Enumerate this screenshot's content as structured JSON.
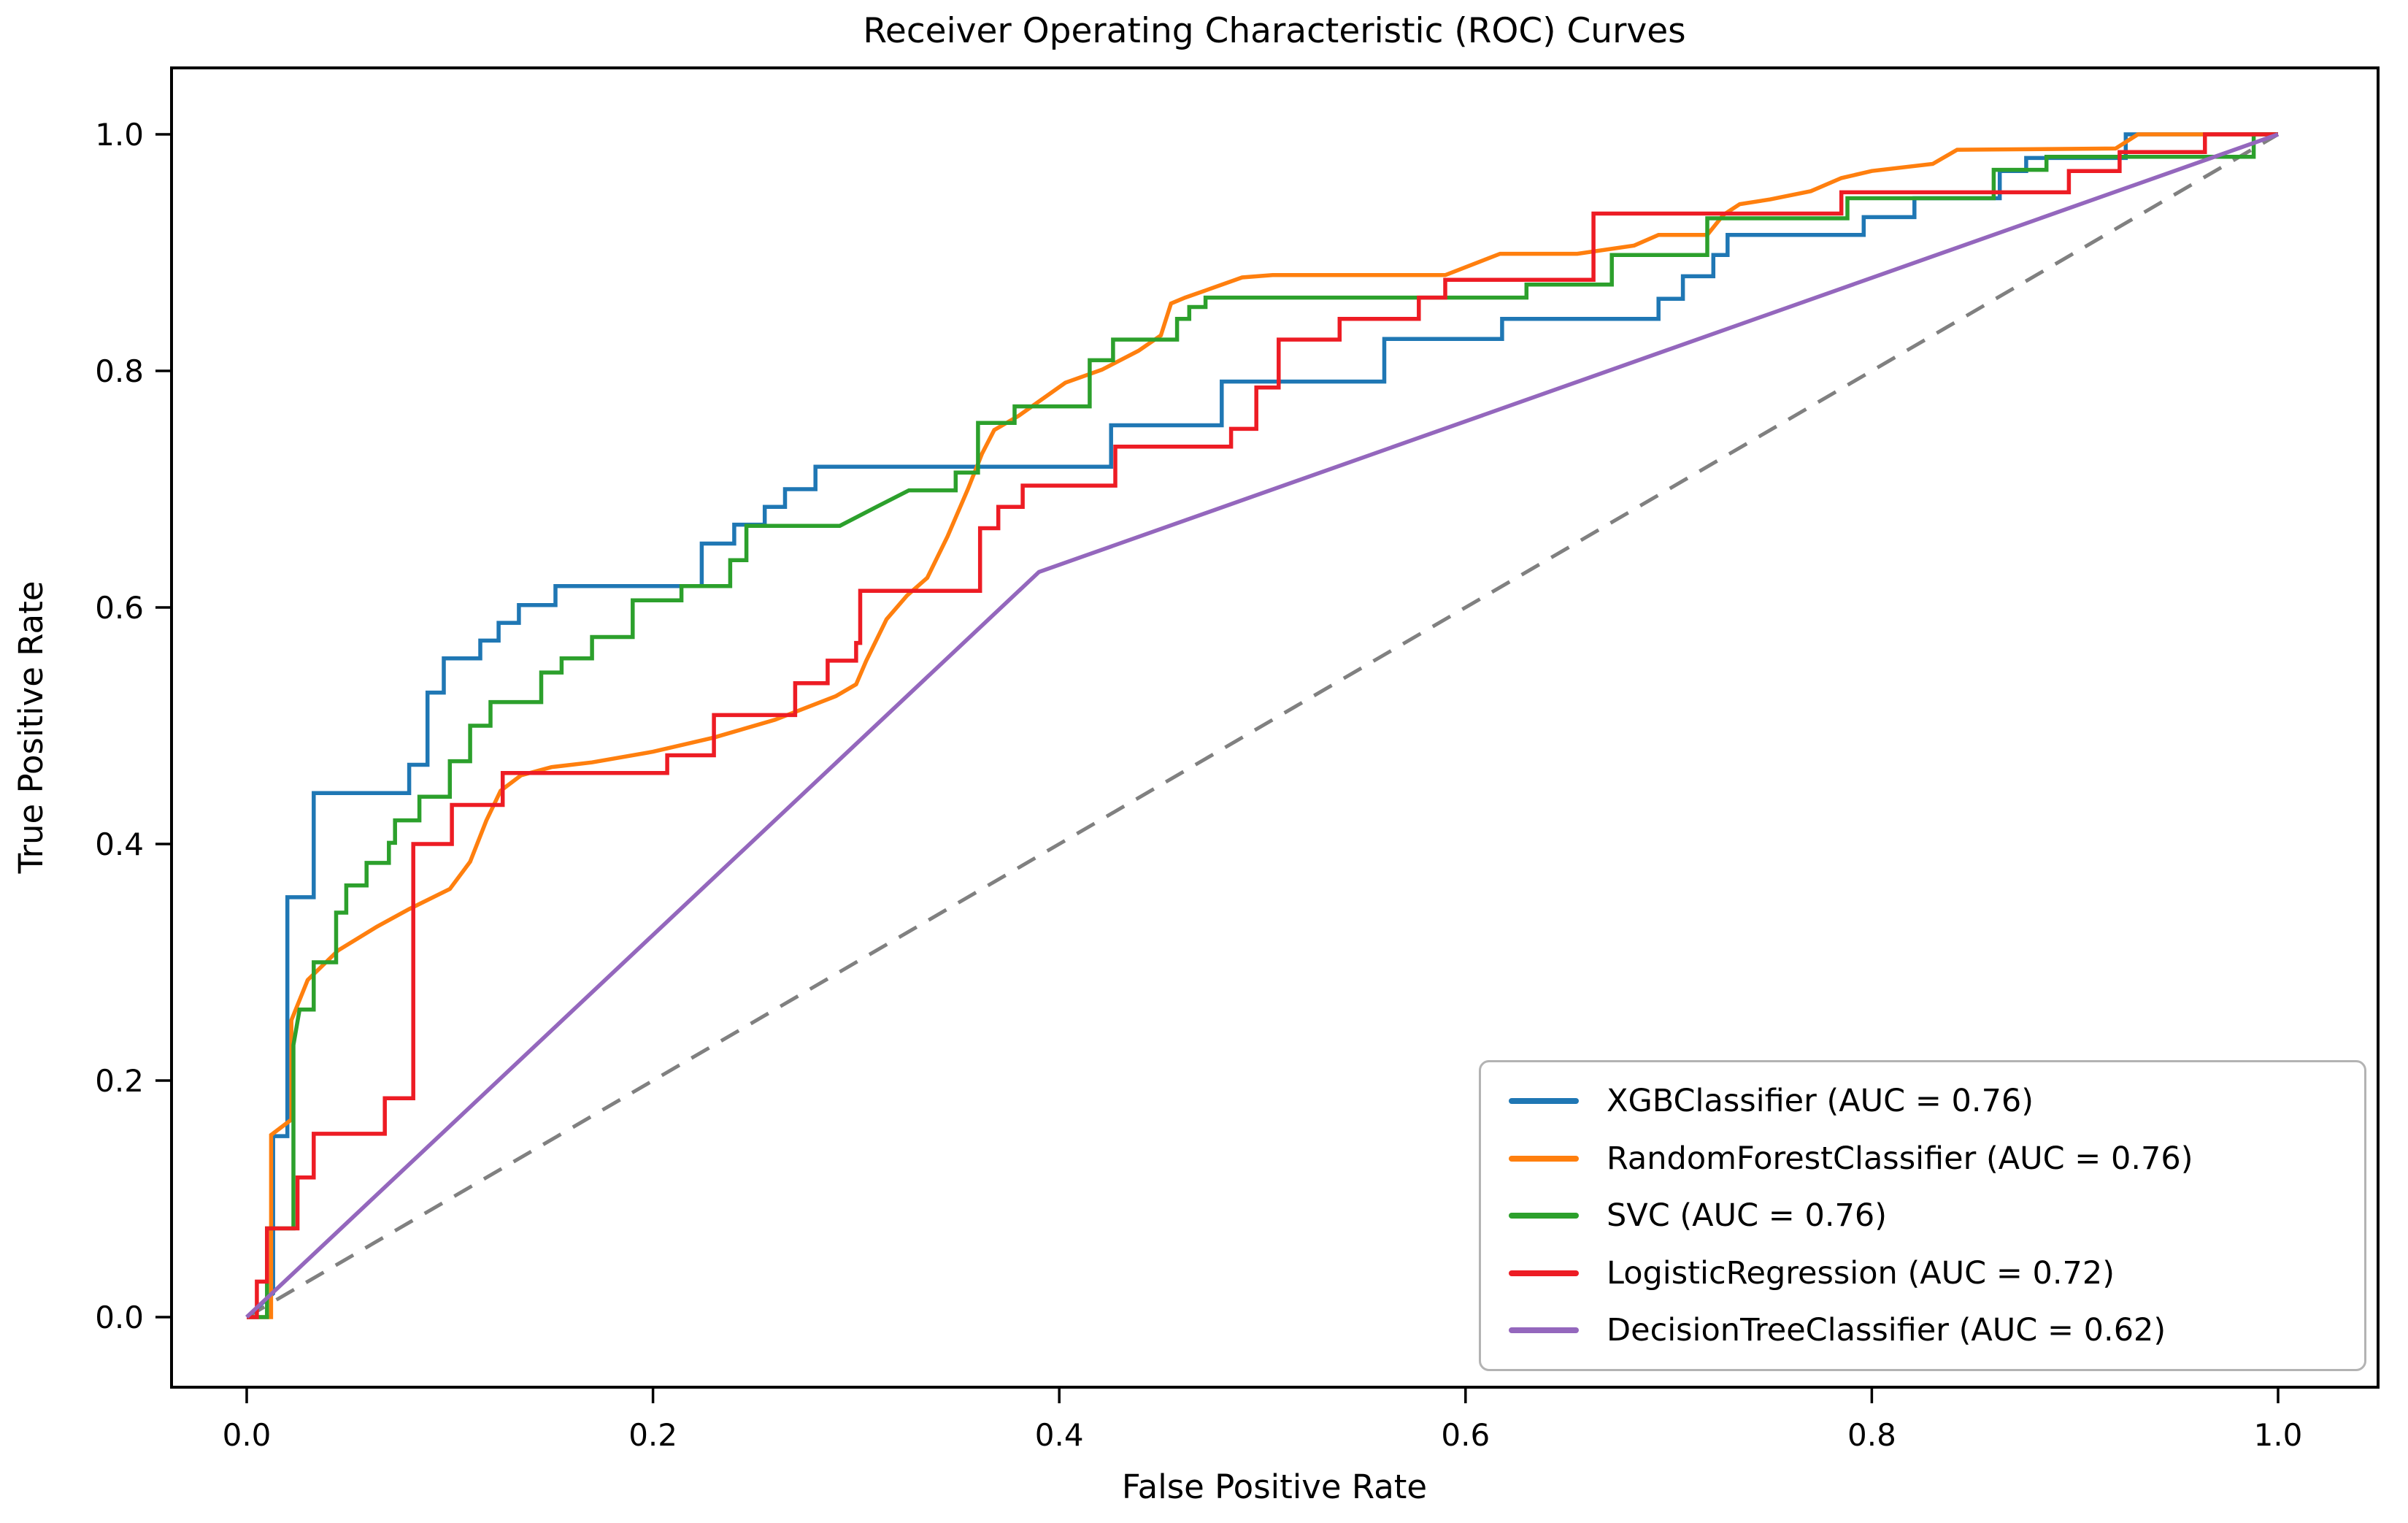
{
  "chart_data": {
    "type": "line",
    "title": "Receiver Operating Characteristic (ROC) Curves",
    "xlabel": "False Positive Rate",
    "ylabel": "True Positive Rate",
    "xlim": [
      0,
      1
    ],
    "ylim": [
      0,
      1
    ],
    "axes_margin": 0.05,
    "grid": false,
    "legend_position": "lower right",
    "xticks": [
      0.0,
      0.2,
      0.4,
      0.6,
      0.8,
      1.0
    ],
    "yticks": [
      0.0,
      0.2,
      0.4,
      0.6,
      0.8,
      1.0
    ],
    "xtick_labels": [
      "0.0",
      "0.2",
      "0.4",
      "0.6",
      "0.8",
      "1.0"
    ],
    "ytick_labels": [
      "0.0",
      "0.2",
      "0.4",
      "0.6",
      "0.8",
      "1.0"
    ],
    "series": [
      {
        "name": "xgbclassifier",
        "label": "XGBClassifier (AUC = 0.76)",
        "auc": 0.76,
        "color": "#1f77b4",
        "line_style": "solid",
        "points": [
          [
            0,
            0
          ],
          [
            0.013,
            0.02
          ],
          [
            0.013,
            0.153
          ],
          [
            0.02,
            0.153
          ],
          [
            0.02,
            0.355
          ],
          [
            0.033,
            0.355
          ],
          [
            0.033,
            0.443
          ],
          [
            0.08,
            0.443
          ],
          [
            0.08,
            0.467
          ],
          [
            0.089,
            0.467
          ],
          [
            0.089,
            0.528
          ],
          [
            0.097,
            0.528
          ],
          [
            0.097,
            0.557
          ],
          [
            0.115,
            0.557
          ],
          [
            0.115,
            0.572
          ],
          [
            0.124,
            0.572
          ],
          [
            0.124,
            0.587
          ],
          [
            0.134,
            0.587
          ],
          [
            0.134,
            0.602
          ],
          [
            0.152,
            0.602
          ],
          [
            0.152,
            0.618
          ],
          [
            0.224,
            0.618
          ],
          [
            0.224,
            0.654
          ],
          [
            0.24,
            0.654
          ],
          [
            0.24,
            0.67
          ],
          [
            0.255,
            0.67
          ],
          [
            0.255,
            0.685
          ],
          [
            0.265,
            0.685
          ],
          [
            0.265,
            0.7
          ],
          [
            0.28,
            0.7
          ],
          [
            0.28,
            0.719
          ],
          [
            0.4255,
            0.719
          ],
          [
            0.4255,
            0.754
          ],
          [
            0.48,
            0.754
          ],
          [
            0.48,
            0.791
          ],
          [
            0.56,
            0.791
          ],
          [
            0.56,
            0.827
          ],
          [
            0.618,
            0.827
          ],
          [
            0.618,
            0.844
          ],
          [
            0.695,
            0.844
          ],
          [
            0.695,
            0.861
          ],
          [
            0.707,
            0.861
          ],
          [
            0.707,
            0.88
          ],
          [
            0.722,
            0.88
          ],
          [
            0.722,
            0.898
          ],
          [
            0.729,
            0.898
          ],
          [
            0.729,
            0.915
          ],
          [
            0.796,
            0.915
          ],
          [
            0.796,
            0.93
          ],
          [
            0.821,
            0.93
          ],
          [
            0.821,
            0.946
          ],
          [
            0.863,
            0.946
          ],
          [
            0.863,
            0.969
          ],
          [
            0.876,
            0.969
          ],
          [
            0.876,
            0.98
          ],
          [
            0.925,
            0.98
          ],
          [
            0.925,
            1.0
          ],
          [
            1,
            1
          ]
        ]
      },
      {
        "name": "randomforestclassifier",
        "label": "RandomForestClassifier (AUC = 0.76)",
        "auc": 0.76,
        "color": "#ff7f0e",
        "line_style": "solid",
        "points": [
          [
            0,
            0
          ],
          [
            0.012,
            0.0
          ],
          [
            0.012,
            0.154
          ],
          [
            0.022,
            0.167
          ],
          [
            0.022,
            0.251
          ],
          [
            0.03,
            0.285
          ],
          [
            0.045,
            0.31
          ],
          [
            0.064,
            0.33
          ],
          [
            0.08,
            0.345
          ],
          [
            0.1,
            0.362
          ],
          [
            0.11,
            0.385
          ],
          [
            0.118,
            0.42
          ],
          [
            0.125,
            0.445
          ],
          [
            0.135,
            0.458
          ],
          [
            0.15,
            0.465
          ],
          [
            0.17,
            0.469
          ],
          [
            0.2,
            0.478
          ],
          [
            0.23,
            0.49
          ],
          [
            0.26,
            0.505
          ],
          [
            0.29,
            0.525
          ],
          [
            0.3,
            0.535
          ],
          [
            0.305,
            0.555
          ],
          [
            0.315,
            0.59
          ],
          [
            0.325,
            0.61
          ],
          [
            0.335,
            0.625
          ],
          [
            0.345,
            0.66
          ],
          [
            0.355,
            0.7
          ],
          [
            0.362,
            0.73
          ],
          [
            0.368,
            0.75
          ],
          [
            0.38,
            0.762
          ],
          [
            0.403,
            0.79
          ],
          [
            0.421,
            0.801
          ],
          [
            0.439,
            0.817
          ],
          [
            0.45,
            0.83
          ],
          [
            0.455,
            0.857
          ],
          [
            0.462,
            0.862
          ],
          [
            0.472,
            0.868
          ],
          [
            0.49,
            0.879
          ],
          [
            0.505,
            0.881
          ],
          [
            0.59,
            0.881
          ],
          [
            0.617,
            0.899
          ],
          [
            0.655,
            0.899
          ],
          [
            0.683,
            0.906
          ],
          [
            0.695,
            0.915
          ],
          [
            0.719,
            0.915
          ],
          [
            0.727,
            0.932
          ],
          [
            0.735,
            0.941
          ],
          [
            0.75,
            0.945
          ],
          [
            0.77,
            0.952
          ],
          [
            0.785,
            0.963
          ],
          [
            0.8,
            0.969
          ],
          [
            0.83,
            0.975
          ],
          [
            0.842,
            0.987
          ],
          [
            0.92,
            0.988
          ],
          [
            0.931,
            1.0
          ],
          [
            1,
            1
          ]
        ]
      },
      {
        "name": "svc",
        "label": "SVC (AUC = 0.76)",
        "auc": 0.76,
        "color": "#2ca02c",
        "line_style": "solid",
        "points": [
          [
            0,
            0
          ],
          [
            0.01,
            0.0
          ],
          [
            0.01,
            0.075
          ],
          [
            0.023,
            0.075
          ],
          [
            0.023,
            0.23
          ],
          [
            0.026,
            0.26
          ],
          [
            0.033,
            0.26
          ],
          [
            0.033,
            0.3
          ],
          [
            0.044,
            0.3
          ],
          [
            0.044,
            0.342
          ],
          [
            0.049,
            0.342
          ],
          [
            0.049,
            0.365
          ],
          [
            0.059,
            0.365
          ],
          [
            0.059,
            0.384
          ],
          [
            0.07,
            0.384
          ],
          [
            0.07,
            0.401
          ],
          [
            0.073,
            0.401
          ],
          [
            0.073,
            0.42
          ],
          [
            0.085,
            0.42
          ],
          [
            0.085,
            0.44
          ],
          [
            0.1,
            0.44
          ],
          [
            0.1,
            0.47
          ],
          [
            0.11,
            0.47
          ],
          [
            0.11,
            0.5
          ],
          [
            0.12,
            0.5
          ],
          [
            0.12,
            0.52
          ],
          [
            0.145,
            0.52
          ],
          [
            0.145,
            0.545
          ],
          [
            0.155,
            0.545
          ],
          [
            0.155,
            0.557
          ],
          [
            0.17,
            0.557
          ],
          [
            0.17,
            0.575
          ],
          [
            0.19,
            0.575
          ],
          [
            0.19,
            0.606
          ],
          [
            0.214,
            0.606
          ],
          [
            0.214,
            0.618
          ],
          [
            0.238,
            0.618
          ],
          [
            0.238,
            0.64
          ],
          [
            0.246,
            0.64
          ],
          [
            0.246,
            0.669
          ],
          [
            0.292,
            0.669
          ],
          [
            0.31,
            0.685
          ],
          [
            0.326,
            0.699
          ],
          [
            0.349,
            0.699
          ],
          [
            0.349,
            0.714
          ],
          [
            0.36,
            0.714
          ],
          [
            0.36,
            0.756
          ],
          [
            0.378,
            0.756
          ],
          [
            0.378,
            0.77
          ],
          [
            0.415,
            0.77
          ],
          [
            0.415,
            0.809
          ],
          [
            0.4265,
            0.809
          ],
          [
            0.4265,
            0.8265
          ],
          [
            0.458,
            0.8265
          ],
          [
            0.458,
            0.844
          ],
          [
            0.464,
            0.844
          ],
          [
            0.464,
            0.854
          ],
          [
            0.472,
            0.854
          ],
          [
            0.472,
            0.862
          ],
          [
            0.63,
            0.862
          ],
          [
            0.63,
            0.873
          ],
          [
            0.672,
            0.873
          ],
          [
            0.672,
            0.898
          ],
          [
            0.719,
            0.898
          ],
          [
            0.719,
            0.929
          ],
          [
            0.788,
            0.929
          ],
          [
            0.788,
            0.946
          ],
          [
            0.86,
            0.946
          ],
          [
            0.86,
            0.97
          ],
          [
            0.886,
            0.97
          ],
          [
            0.886,
            0.981
          ],
          [
            0.988,
            0.981
          ],
          [
            0.988,
            1.0
          ],
          [
            1,
            1
          ]
        ]
      },
      {
        "name": "logisticregression",
        "label": "LogisticRegression (AUC = 0.72)",
        "auc": 0.72,
        "color": "#ed1c24",
        "line_style": "solid",
        "points": [
          [
            0,
            0
          ],
          [
            0.005,
            0.0
          ],
          [
            0.005,
            0.03
          ],
          [
            0.01,
            0.03
          ],
          [
            0.01,
            0.075
          ],
          [
            0.025,
            0.075
          ],
          [
            0.025,
            0.118
          ],
          [
            0.033,
            0.118
          ],
          [
            0.033,
            0.155
          ],
          [
            0.068,
            0.155
          ],
          [
            0.068,
            0.185
          ],
          [
            0.082,
            0.185
          ],
          [
            0.082,
            0.4
          ],
          [
            0.101,
            0.4
          ],
          [
            0.101,
            0.433
          ],
          [
            0.126,
            0.433
          ],
          [
            0.126,
            0.46
          ],
          [
            0.207,
            0.46
          ],
          [
            0.207,
            0.475
          ],
          [
            0.23,
            0.475
          ],
          [
            0.23,
            0.509
          ],
          [
            0.27,
            0.509
          ],
          [
            0.27,
            0.536
          ],
          [
            0.286,
            0.536
          ],
          [
            0.286,
            0.555
          ],
          [
            0.3,
            0.555
          ],
          [
            0.3,
            0.57
          ],
          [
            0.302,
            0.57
          ],
          [
            0.302,
            0.614
          ],
          [
            0.361,
            0.614
          ],
          [
            0.361,
            0.667
          ],
          [
            0.37,
            0.667
          ],
          [
            0.37,
            0.685
          ],
          [
            0.382,
            0.685
          ],
          [
            0.382,
            0.703
          ],
          [
            0.4276,
            0.703
          ],
          [
            0.4276,
            0.736
          ],
          [
            0.4846,
            0.736
          ],
          [
            0.4846,
            0.751
          ],
          [
            0.497,
            0.751
          ],
          [
            0.497,
            0.786
          ],
          [
            0.508,
            0.786
          ],
          [
            0.508,
            0.8265
          ],
          [
            0.538,
            0.8265
          ],
          [
            0.538,
            0.844
          ],
          [
            0.577,
            0.844
          ],
          [
            0.577,
            0.862
          ],
          [
            0.59,
            0.862
          ],
          [
            0.59,
            0.877
          ],
          [
            0.663,
            0.877
          ],
          [
            0.663,
            0.933
          ],
          [
            0.785,
            0.933
          ],
          [
            0.785,
            0.951
          ],
          [
            0.897,
            0.951
          ],
          [
            0.897,
            0.969
          ],
          [
            0.922,
            0.969
          ],
          [
            0.922,
            0.985
          ],
          [
            0.964,
            0.985
          ],
          [
            0.964,
            1.0
          ],
          [
            1,
            1
          ]
        ]
      },
      {
        "name": "decisiontreeclassifier",
        "label": "DecisionTreeClassifier (AUC = 0.62)",
        "auc": 0.62,
        "color": "#9467bd",
        "line_style": "solid",
        "points": [
          [
            0,
            0
          ],
          [
            0.39,
            0.63
          ],
          [
            1,
            1
          ]
        ]
      },
      {
        "name": "chance-diagonal",
        "label": null,
        "color": "#808080",
        "line_style": "dashed",
        "points": [
          [
            0,
            0
          ],
          [
            1,
            1
          ]
        ]
      }
    ]
  },
  "colors": {
    "background": "#ffffff",
    "axes_spine": "#000000",
    "tick_label": "#000000",
    "legend_border": "#b3b3b3"
  }
}
